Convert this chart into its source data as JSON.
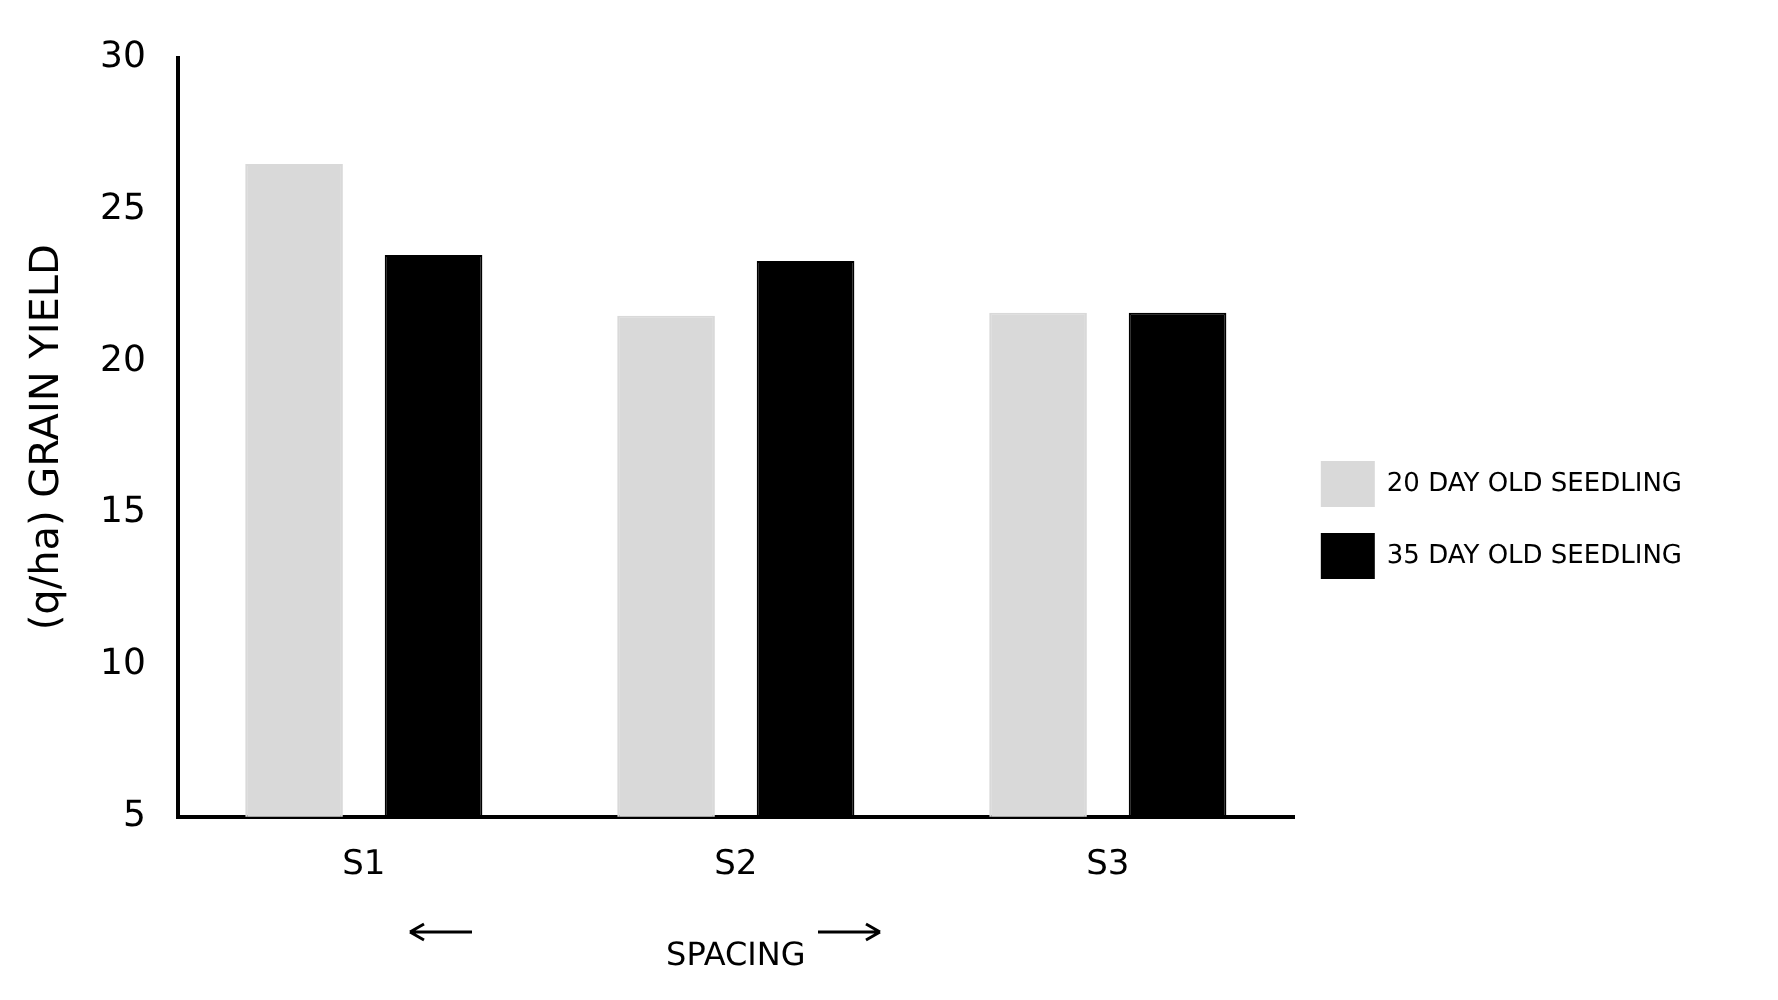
{
  "chart_data": {
    "type": "bar",
    "ylabel": "(q/ha) GRAIN YIELD",
    "xlabel": "SPACING",
    "categories": [
      "S1",
      "S2",
      "S3"
    ],
    "series": [
      {
        "name": "20 DAY OLD SEEDLING",
        "color": "#d9d9d9",
        "values": [
          26.5,
          21.5,
          21.6
        ]
      },
      {
        "name": "35 DAY OLD SEEDLING",
        "color": "#000000",
        "values": [
          23.5,
          23.3,
          21.6
        ]
      }
    ],
    "ylim": [
      5,
      30
    ],
    "yticks": [
      5,
      10,
      15,
      20,
      25,
      30
    ],
    "grid": false,
    "legend": "right"
  }
}
